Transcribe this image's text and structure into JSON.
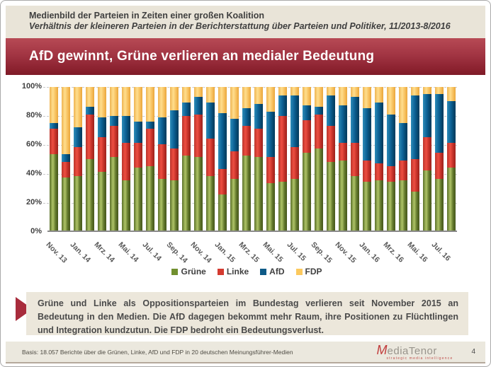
{
  "header": {
    "title": "Medienbild der Parteien in Zeiten einer großen Koalition",
    "subtitle": "Verhältnis der kleineren Parteien in der Berichterstattung über Parteien und Politiker, 11/2013-8/2016"
  },
  "banner": {
    "title": "AfD gewinnt, Grüne verlieren an medialer Bedeutung"
  },
  "chart_data": {
    "type": "bar",
    "stacked": true,
    "unit": "percent",
    "ylim": [
      0,
      100
    ],
    "yticks": [
      "100%",
      "80%",
      "60%",
      "40%",
      "20%",
      "0%"
    ],
    "grid": true,
    "legend_position": "bottom",
    "tick_label_every": 2,
    "categories": [
      "Nov. 13",
      "Dez. 13",
      "Jan. 14",
      "Feb. 14",
      "Mrz. 14",
      "Apr. 14",
      "Mai. 14",
      "Jun. 14",
      "Jul. 14",
      "Aug. 14",
      "Sep. 14",
      "Okt. 14",
      "Nov. 14",
      "Dez. 14",
      "Jan. 15",
      "Feb. 15",
      "Mrz. 15",
      "Apr. 15",
      "Mai. 15",
      "Jun. 15",
      "Jul. 15",
      "Aug. 15",
      "Sep. 15",
      "Okt. 15",
      "Nov. 15",
      "Dez. 15",
      "Jan. 16",
      "Feb. 16",
      "Mrz. 16",
      "Apr. 16",
      "Mai. 16",
      "Jun. 16",
      "Jul. 16",
      "Aug. 16"
    ],
    "shown_tick_labels": [
      "Nov. 13",
      "Jan. 14",
      "Mrz. 14",
      "Mai. 14",
      "Jul. 14",
      "Sep. 14",
      "Nov. 14",
      "Jan. 15",
      "Mrz. 15",
      "Mai. 15",
      "Jul. 15",
      "Sep. 15",
      "Nov. 15",
      "Jan. 16",
      "Mrz. 16",
      "Mai. 16",
      "Jul. 16"
    ],
    "series": [
      {
        "name": "Grüne",
        "color": "#71902f",
        "values": [
          53,
          37,
          38,
          50,
          41,
          51,
          35,
          44,
          45,
          36,
          35,
          52,
          51,
          38,
          25,
          36,
          52,
          51,
          33,
          34,
          36,
          54,
          57,
          48,
          49,
          38,
          34,
          35,
          34,
          35,
          27,
          42,
          36,
          44
        ]
      },
      {
        "name": "Linke",
        "color": "#d43a30",
        "values": [
          18,
          11,
          20,
          31,
          24,
          22,
          26,
          17,
          26,
          24,
          22,
          28,
          30,
          26,
          18,
          19,
          21,
          20,
          18,
          46,
          22,
          23,
          24,
          25,
          12,
          23,
          15,
          12,
          11,
          14,
          23,
          23,
          18,
          17
        ]
      },
      {
        "name": "AfD",
        "color": "#0e5a87",
        "values": [
          4,
          5,
          14,
          5,
          14,
          7,
          19,
          15,
          5,
          19,
          27,
          9,
          12,
          25,
          39,
          23,
          12,
          17,
          32,
          14,
          36,
          10,
          5,
          21,
          26,
          32,
          36,
          42,
          36,
          26,
          44,
          30,
          41,
          29
        ]
      },
      {
        "name": "FDP",
        "color": "#fcc95e",
        "values": [
          25,
          47,
          28,
          14,
          21,
          20,
          20,
          24,
          24,
          21,
          16,
          11,
          7,
          11,
          18,
          22,
          15,
          12,
          17,
          6,
          6,
          13,
          14,
          6,
          13,
          7,
          15,
          11,
          19,
          25,
          6,
          5,
          5,
          10
        ]
      }
    ]
  },
  "callout": {
    "text": "Grüne und Linke als Oppositionsparteien im Bundestag verlieren seit November 2015 an Bedeutung in den Medien. Die AfD dagegen bekommt mehr Raum, ihre Positionen zu Flüchtlingen und Integration kundzutun. Die FDP bedroht ein Bedeutungsverlust."
  },
  "footer": {
    "basis": "Basis: 18.057 Berichte über die Grünen, Linke, AfD und FDP in 20 deutschen Meinungsführer-Medien",
    "logo": {
      "m": "M",
      "edia": "edia",
      "tenor": "Tenor",
      "tagline": "strategic media intelligence"
    },
    "page_number": "4"
  },
  "colors": {
    "header_band_bg": "#e9e4d8",
    "banner_red_top": "#b74a55",
    "banner_red_bottom": "#7e1b28",
    "callout_bg": "#ece7db",
    "callout_arrow": "#a82c3c",
    "footer_bg": "#ebe8de",
    "logo_red": "#c13b3b",
    "gridline": "#c8c8c8",
    "axis": "#898989"
  }
}
